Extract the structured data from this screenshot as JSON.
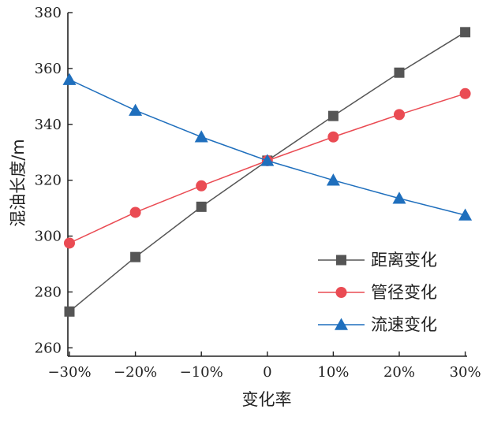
{
  "chart_data": {
    "type": "line",
    "title": "",
    "xlabel": "变化率",
    "ylabel": "混油长度/m",
    "categories": [
      "−30%",
      "−20%",
      "−10%",
      "0",
      "10%",
      "20%",
      "30%"
    ],
    "ylim": [
      257,
      380
    ],
    "yticks": [
      260,
      280,
      300,
      320,
      340,
      360,
      380
    ],
    "grid": false,
    "legend_position": "lower-right",
    "series": [
      {
        "name": "距离变化",
        "color": "#555555",
        "marker": "square",
        "values": [
          273,
          292.5,
          310.5,
          327,
          343,
          358.5,
          373
        ]
      },
      {
        "name": "管径变化",
        "color": "#ea4b53",
        "marker": "circle",
        "values": [
          297.5,
          308.5,
          318,
          327,
          335.5,
          343.5,
          351
        ]
      },
      {
        "name": "流速变化",
        "color": "#1f6fbd",
        "marker": "triangle",
        "values": [
          356,
          345,
          335.5,
          327,
          320,
          313.5,
          307.5
        ]
      }
    ]
  }
}
